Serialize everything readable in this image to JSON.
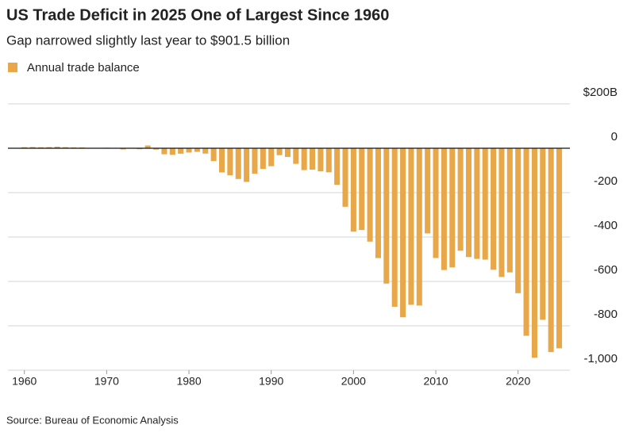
{
  "chart_data": {
    "type": "bar",
    "title": "US Trade Deficit in 2025 One of Largest Since 1960",
    "subtitle": "Gap narrowed slightly last year to $901.5 billion",
    "source": "Source: Bureau of Economic Analysis",
    "x": [
      1960,
      1961,
      1962,
      1963,
      1964,
      1965,
      1966,
      1967,
      1968,
      1969,
      1970,
      1971,
      1972,
      1973,
      1974,
      1975,
      1976,
      1977,
      1978,
      1979,
      1980,
      1981,
      1982,
      1983,
      1984,
      1985,
      1986,
      1987,
      1988,
      1989,
      1990,
      1991,
      1992,
      1993,
      1994,
      1995,
      1996,
      1997,
      1998,
      1999,
      2000,
      2001,
      2002,
      2003,
      2004,
      2005,
      2006,
      2007,
      2008,
      2009,
      2010,
      2011,
      2012,
      2013,
      2014,
      2015,
      2016,
      2017,
      2018,
      2019,
      2020,
      2021,
      2022,
      2023,
      2024,
      2025
    ],
    "series": [
      {
        "name": "Annual trade balance",
        "color": "#e8a84a",
        "values": [
          4.9,
          5.6,
          4.5,
          5.2,
          7.0,
          5.0,
          3.8,
          3.8,
          0.6,
          0.1,
          2.3,
          -1.3,
          -5.4,
          1.9,
          -4.3,
          12.4,
          -6.1,
          -27.2,
          -29.8,
          -24.6,
          -19.4,
          -16.2,
          -24.2,
          -57.8,
          -109.1,
          -121.9,
          -138.5,
          -151.7,
          -114.6,
          -93.1,
          -80.9,
          -31.1,
          -39.2,
          -70.3,
          -98.5,
          -96.4,
          -104.1,
          -108.3,
          -164.9,
          -263.8,
          -375.8,
          -368.3,
          -420.7,
          -494.9,
          -609.9,
          -714.2,
          -761.7,
          -705.4,
          -708.7,
          -383.8,
          -494.7,
          -548.6,
          -536.8,
          -461.9,
          -490.3,
          -498.5,
          -502.0,
          -547.5,
          -580.0,
          -559.4,
          -653.0,
          -845.0,
          -944.0,
          -773.0,
          -918.4,
          -901.5
        ]
      }
    ],
    "xlim": [
      1958,
      2026.3
    ],
    "xticks": [
      1960,
      1970,
      1980,
      1990,
      2000,
      2010,
      2020
    ],
    "ylim": [
      -1000,
      200
    ],
    "yticks": [
      {
        "value": 200,
        "label": "$200B"
      },
      0,
      -200,
      -400,
      -600,
      -800,
      {
        "value": -1000,
        "label": "-1,000"
      }
    ],
    "grid": true
  }
}
